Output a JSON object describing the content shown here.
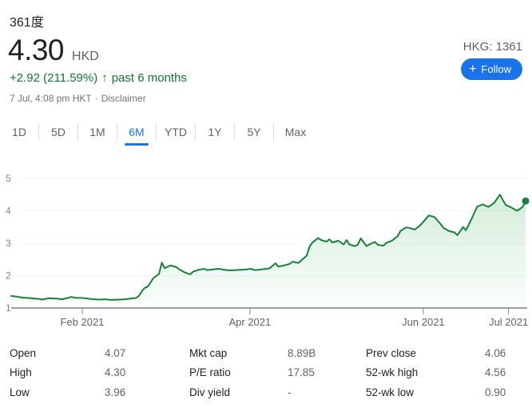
{
  "header": {
    "company": "361度",
    "price": "4.30",
    "currency": "HKD",
    "change_line": {
      "change": "+2.92 (211.59%)",
      "arrow": "↑",
      "period": "past 6 months"
    },
    "timestamp": "7 Jul, 4:08 pm HKT",
    "separator": "·",
    "disclaimer": "Disclaimer",
    "exchange": "HKG: 1361",
    "follow": {
      "icon": "+",
      "label": "Follow"
    }
  },
  "tabs": {
    "items": [
      {
        "label": "1D",
        "selected": false
      },
      {
        "label": "5D",
        "selected": false
      },
      {
        "label": "1M",
        "selected": false
      },
      {
        "label": "6M",
        "selected": true
      },
      {
        "label": "YTD",
        "selected": false
      },
      {
        "label": "1Y",
        "selected": false
      },
      {
        "label": "5Y",
        "selected": false
      },
      {
        "label": "Max",
        "selected": false
      }
    ]
  },
  "chart_data": {
    "type": "area",
    "title": "361度 share price, past 6 months (HKD)",
    "x_unit": "days since 7 Jan 2021",
    "x_range": [
      0,
      181
    ],
    "ylim": [
      1,
      5
    ],
    "y_ticks": [
      1,
      2,
      3,
      4,
      5
    ],
    "x_ticks": [
      {
        "day": 25,
        "label": "Feb 2021"
      },
      {
        "day": 84,
        "label": "Apr 2021"
      },
      {
        "day": 145,
        "label": "Jun 2021"
      },
      {
        "day": 175,
        "label": "Jul 2021"
      }
    ],
    "grid": true,
    "legend": "none",
    "end_dot": true,
    "line_color": "#188038",
    "fill_color": "#34a853",
    "fill_opacity_top": 0.24,
    "fill_opacity_bottom": 0.02,
    "series": [
      {
        "name": "price",
        "points": [
          [
            0,
            1.37
          ],
          [
            2,
            1.35
          ],
          [
            4,
            1.32
          ],
          [
            7,
            1.3
          ],
          [
            10,
            1.28
          ],
          [
            11,
            1.26
          ],
          [
            13,
            1.3
          ],
          [
            16,
            1.29
          ],
          [
            18,
            1.27
          ],
          [
            20,
            1.31
          ],
          [
            21,
            1.34
          ],
          [
            23,
            1.31
          ],
          [
            25,
            1.31
          ],
          [
            27,
            1.29
          ],
          [
            29,
            1.27
          ],
          [
            31,
            1.26
          ],
          [
            33,
            1.27
          ],
          [
            35,
            1.25
          ],
          [
            38,
            1.26
          ],
          [
            40,
            1.27
          ],
          [
            42,
            1.29
          ],
          [
            44,
            1.31
          ],
          [
            45,
            1.38
          ],
          [
            46,
            1.52
          ],
          [
            47,
            1.62
          ],
          [
            48,
            1.66
          ],
          [
            49,
            1.78
          ],
          [
            50,
            1.92
          ],
          [
            52,
            2.05
          ],
          [
            53,
            2.4
          ],
          [
            54,
            2.23
          ],
          [
            56,
            2.31
          ],
          [
            58,
            2.27
          ],
          [
            59,
            2.2
          ],
          [
            61,
            2.1
          ],
          [
            63,
            2.04
          ],
          [
            64,
            2.12
          ],
          [
            66,
            2.18
          ],
          [
            68,
            2.21
          ],
          [
            69,
            2.17
          ],
          [
            71,
            2.19
          ],
          [
            73,
            2.21
          ],
          [
            75,
            2.18
          ],
          [
            77,
            2.16
          ],
          [
            79,
            2.17
          ],
          [
            81,
            2.18
          ],
          [
            83,
            2.19
          ],
          [
            84,
            2.21
          ],
          [
            86,
            2.17
          ],
          [
            88,
            2.19
          ],
          [
            90,
            2.21
          ],
          [
            91,
            2.23
          ],
          [
            93,
            2.38
          ],
          [
            94,
            2.28
          ],
          [
            96,
            2.31
          ],
          [
            98,
            2.36
          ],
          [
            99,
            2.43
          ],
          [
            101,
            2.39
          ],
          [
            102,
            2.46
          ],
          [
            104,
            2.62
          ],
          [
            105,
            2.9
          ],
          [
            106,
            3.02
          ],
          [
            108,
            3.16
          ],
          [
            109,
            3.1
          ],
          [
            111,
            3.05
          ],
          [
            112,
            3.12
          ],
          [
            113,
            3.02
          ],
          [
            115,
            3.08
          ],
          [
            117,
            2.96
          ],
          [
            118,
            3.1
          ],
          [
            119,
            2.96
          ],
          [
            121,
            2.91
          ],
          [
            122,
            2.96
          ],
          [
            123,
            3.15
          ],
          [
            125,
            2.91
          ],
          [
            126,
            2.96
          ],
          [
            128,
            3.04
          ],
          [
            129,
            2.95
          ],
          [
            131,
            2.92
          ],
          [
            132,
            3.01
          ],
          [
            134,
            3.08
          ],
          [
            136,
            3.22
          ],
          [
            137,
            3.38
          ],
          [
            139,
            3.49
          ],
          [
            141,
            3.45
          ],
          [
            142,
            3.42
          ],
          [
            144,
            3.56
          ],
          [
            146,
            3.76
          ],
          [
            147,
            3.86
          ],
          [
            149,
            3.8
          ],
          [
            151,
            3.6
          ],
          [
            152,
            3.48
          ],
          [
            154,
            3.38
          ],
          [
            156,
            3.33
          ],
          [
            157,
            3.25
          ],
          [
            159,
            3.5
          ],
          [
            160,
            3.4
          ],
          [
            162,
            3.75
          ],
          [
            163,
            3.95
          ],
          [
            164,
            4.13
          ],
          [
            166,
            4.2
          ],
          [
            167,
            4.15
          ],
          [
            168,
            4.12
          ],
          [
            170,
            4.25
          ],
          [
            171,
            4.38
          ],
          [
            172,
            4.5
          ],
          [
            173,
            4.33
          ],
          [
            174,
            4.18
          ],
          [
            176,
            4.1
          ],
          [
            177,
            4.05
          ],
          [
            178,
            4.0
          ],
          [
            179,
            4.06
          ],
          [
            180,
            4.12
          ],
          [
            181,
            4.3
          ]
        ]
      }
    ]
  },
  "stats": {
    "columns": [
      {
        "rows": [
          {
            "label": "Open",
            "value": "4.07"
          },
          {
            "label": "High",
            "value": "4.30"
          },
          {
            "label": "Low",
            "value": "3.96"
          }
        ]
      },
      {
        "rows": [
          {
            "label": "Mkt cap",
            "value": "8.89B"
          },
          {
            "label": "P/E ratio",
            "value": "17.85"
          },
          {
            "label": "Div yield",
            "value": "-"
          }
        ]
      },
      {
        "rows": [
          {
            "label": "Prev close",
            "value": "4.06"
          },
          {
            "label": "52-wk high",
            "value": "4.56"
          },
          {
            "label": "52-wk low",
            "value": "0.90"
          }
        ]
      }
    ]
  },
  "colors": {
    "accent_blue": "#1a73e8",
    "positive_green": "#137333",
    "line_green": "#188038",
    "text_primary": "#202124",
    "text_secondary": "#5f6368",
    "grid_light": "#f1f3f4",
    "axis_gray": "#9aa0a6",
    "divider": "#dadce0"
  }
}
